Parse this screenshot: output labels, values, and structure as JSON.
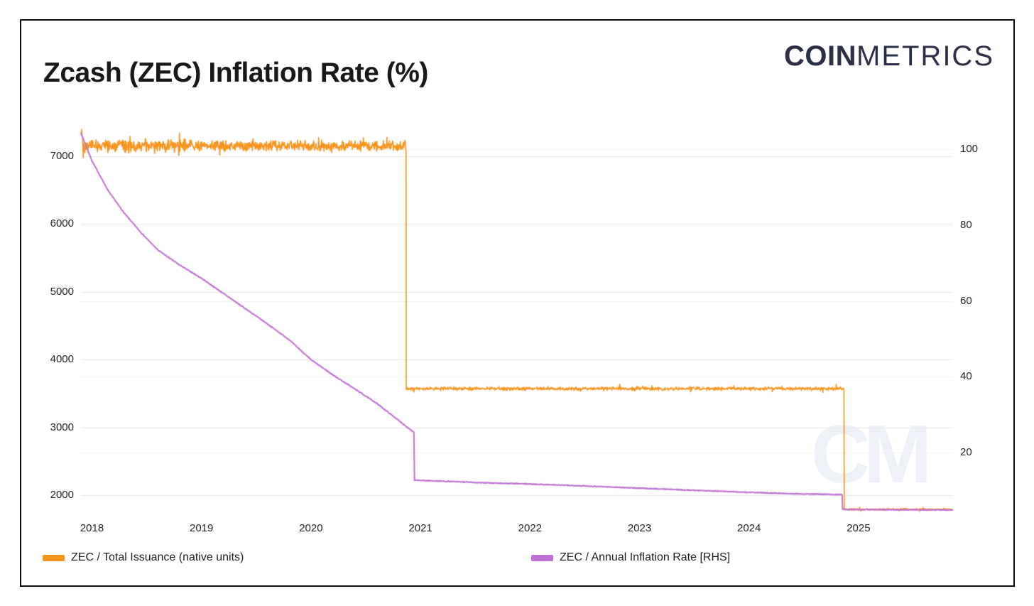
{
  "page": {
    "title": "Zcash (ZEC) Inflation Rate (%)"
  },
  "logo": {
    "bold": "COIN",
    "light": "METRICS",
    "color": "#2b3047"
  },
  "watermark_text": "CM",
  "colors": {
    "issuance_orange": "#F7941E",
    "inflation_purple": "#BF72D3",
    "grid_left": "#e9e9e9",
    "grid_right": "#f2f2f2",
    "tick_text": "#262626",
    "watermark": "#eef1f8"
  },
  "legend": [
    {
      "label": "ZEC / Total Issuance (native units)",
      "color": "#F7941E"
    },
    {
      "label": "ZEC / Annual Inflation Rate [RHS]",
      "color": "#BF72D3"
    }
  ],
  "chart_data": {
    "type": "line",
    "title": "Zcash (ZEC) Inflation Rate (%)",
    "x_axis": {
      "ticks": [
        "2018",
        "2019",
        "2020",
        "2021",
        "2022",
        "2023",
        "2024",
        "2025"
      ],
      "range_years": [
        2017.9,
        2025.86
      ]
    },
    "left_axis": {
      "ticks": [
        7000,
        6000,
        5000,
        4000,
        3000,
        2000
      ],
      "range": [
        1680,
        7450
      ],
      "grid": true
    },
    "right_axis": {
      "ticks": [
        100,
        80,
        60,
        40,
        20
      ],
      "range": [
        0,
        105
      ],
      "grid": true
    },
    "legend_position": "bottom",
    "series": [
      {
        "name": "ZEC / Total Issuance (native units)",
        "axis": "left",
        "color": "#F7941E",
        "style": "noisy",
        "segments": [
          {
            "t_start": 2017.9,
            "t_end": 2020.87,
            "mean": 7150,
            "noise": 90
          },
          {
            "t_start": 2020.87,
            "t_end": 2024.87,
            "mean": 3570,
            "noise": 30
          },
          {
            "t_start": 2024.87,
            "t_end": 2025.86,
            "mean": 1790,
            "noise": 16
          }
        ]
      },
      {
        "name": "ZEC / Annual Inflation Rate [RHS]",
        "axis": "right",
        "color": "#BF72D3",
        "style": "line",
        "points": [
          [
            2017.9,
            104.3
          ],
          [
            2018.0,
            97
          ],
          [
            2018.15,
            89
          ],
          [
            2018.3,
            83
          ],
          [
            2018.45,
            78
          ],
          [
            2018.6,
            73.5
          ],
          [
            2018.8,
            69.5
          ],
          [
            2019.0,
            66
          ],
          [
            2019.2,
            62
          ],
          [
            2019.4,
            58
          ],
          [
            2019.6,
            54
          ],
          [
            2019.8,
            49.8
          ],
          [
            2020.0,
            44.5
          ],
          [
            2020.2,
            40.5
          ],
          [
            2020.4,
            36.8
          ],
          [
            2020.6,
            33.0
          ],
          [
            2020.8,
            28.5
          ],
          [
            2020.94,
            25.3
          ],
          [
            2020.945,
            12.7
          ],
          [
            2021.2,
            12.45
          ],
          [
            2021.6,
            12.0
          ],
          [
            2022.0,
            11.7
          ],
          [
            2022.5,
            11.2
          ],
          [
            2023.0,
            10.6
          ],
          [
            2023.5,
            10.05
          ],
          [
            2024.0,
            9.5
          ],
          [
            2024.4,
            9.15
          ],
          [
            2024.85,
            8.9
          ],
          [
            2024.855,
            5.0
          ],
          [
            2025.2,
            4.95
          ],
          [
            2025.86,
            4.85
          ]
        ]
      }
    ]
  }
}
